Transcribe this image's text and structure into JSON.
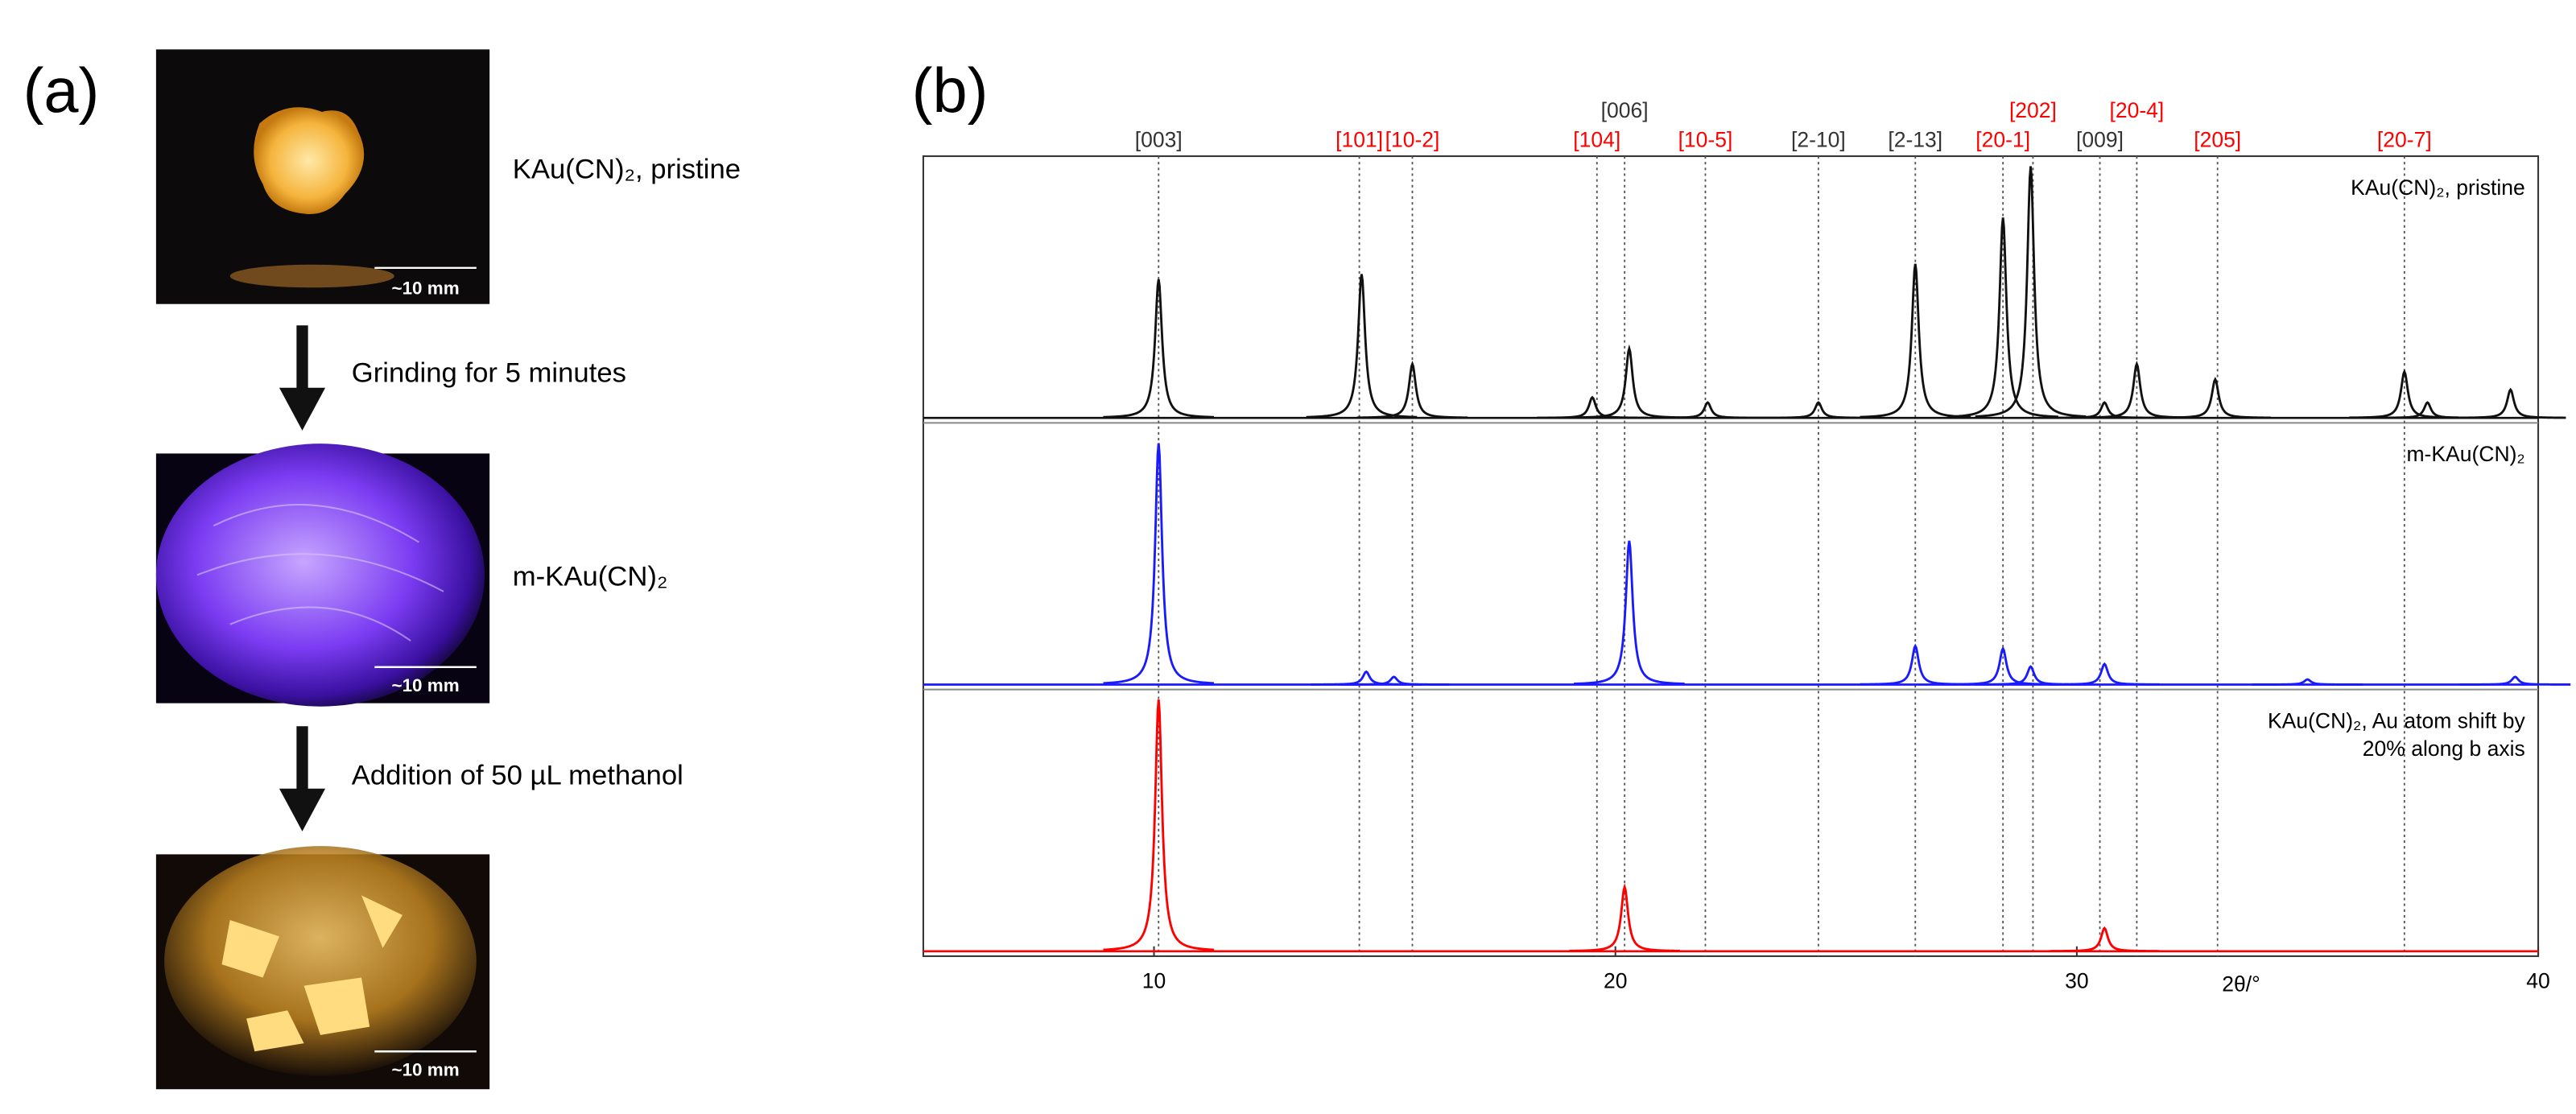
{
  "panel_a": {
    "label": "(a)",
    "captions": [
      "KAu(CN)₂, pristine",
      "m-KAu(CN)₂"
    ],
    "steps": [
      "Grinding for 5 minutes",
      "Addition of 50 µL methanol"
    ],
    "scale_bars": [
      "~10 mm",
      "~10 mm",
      "~10 mm"
    ]
  },
  "panel_b": {
    "label": "(b)",
    "chart_data": {
      "type": "line",
      "xlim": [
        5,
        40
      ],
      "xticks": [
        10,
        20,
        30,
        40
      ],
      "xlabel": "2θ/°",
      "ylim": [
        0,
        1
      ],
      "reflections": [
        {
          "label": "[003]",
          "x": 10.1,
          "color": "#333333"
        },
        {
          "label": "[101]",
          "x": 14.45,
          "color": "#ff0000"
        },
        {
          "label": "[10-2]",
          "x": 15.6,
          "color": "#ff0000"
        },
        {
          "label": "[104]",
          "x": 19.6,
          "color": "#ff0000"
        },
        {
          "label": "[006]",
          "x": 20.2,
          "color": "#333333"
        },
        {
          "label": "[10-5]",
          "x": 21.95,
          "color": "#ff0000"
        },
        {
          "label": "[2-10]",
          "x": 24.4,
          "color": "#333333"
        },
        {
          "label": "[2-13]",
          "x": 26.5,
          "color": "#333333"
        },
        {
          "label": "[20-1]",
          "x": 28.4,
          "color": "#ff0000"
        },
        {
          "label": "[202]",
          "x": 29.05,
          "color": "#ff0000"
        },
        {
          "label": "[009]",
          "x": 30.5,
          "color": "#333333"
        },
        {
          "label": "[20-4]",
          "x": 31.3,
          "color": "#ff0000"
        },
        {
          "label": "[205]",
          "x": 33.05,
          "color": "#ff0000"
        },
        {
          "label": "[20-7]",
          "x": 37.1,
          "color": "#ff0000"
        }
      ],
      "series": [
        {
          "name": [
            "KAu(CN)₂, pristine"
          ],
          "color": "#111111",
          "x": [
            10.1,
            14.5,
            15.6,
            19.5,
            20.3,
            22.0,
            24.4,
            26.5,
            28.4,
            29.0,
            30.6,
            31.3,
            33.0,
            37.1,
            37.6,
            39.4
          ],
          "values": [
            0.54,
            0.56,
            0.21,
            0.08,
            0.27,
            0.06,
            0.06,
            0.6,
            0.78,
            0.98,
            0.06,
            0.21,
            0.15,
            0.18,
            0.06,
            0.11
          ]
        },
        {
          "name": [
            "m-KAu(CN)₂"
          ],
          "color": "#1a1aff",
          "x": [
            10.1,
            14.6,
            15.2,
            20.3,
            26.5,
            28.4,
            29.0,
            30.6,
            35.0,
            39.5
          ],
          "values": [
            0.94,
            0.05,
            0.03,
            0.56,
            0.15,
            0.14,
            0.07,
            0.08,
            0.02,
            0.03
          ]
        },
        {
          "name": [
            "KAu(CN)₂, Au atom shift by",
            "20% along b axis"
          ],
          "color": "#ff0000",
          "x": [
            10.1,
            20.2,
            30.6
          ],
          "values": [
            0.98,
            0.25,
            0.09
          ]
        }
      ]
    }
  }
}
